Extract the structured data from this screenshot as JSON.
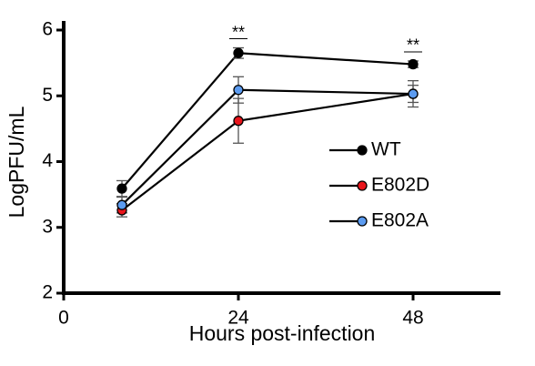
{
  "chart_data": {
    "type": "line",
    "x_label": "Hours post-infection",
    "y_label": "LogPFU/mL",
    "x": [
      8,
      24,
      48
    ],
    "series": [
      {
        "name": "WT",
        "color": "#000000",
        "values": [
          3.59,
          5.65,
          5.48
        ],
        "errors": [
          0.12,
          0.08,
          0.05
        ]
      },
      {
        "name": "E802D",
        "color": "#e8141b",
        "values": [
          3.26,
          4.62,
          5.03
        ],
        "errors": [
          0.1,
          0.34,
          0.2
        ]
      },
      {
        "name": "E802A",
        "color": "#5b9bf0",
        "values": [
          3.34,
          5.09,
          5.03
        ],
        "errors": [
          0.12,
          0.2,
          0.13
        ]
      }
    ],
    "annotations": [
      {
        "text": "**",
        "x": 24
      },
      {
        "text": "**",
        "x": 48
      }
    ],
    "xlim": [
      0,
      60
    ],
    "xticks": [
      0,
      24,
      48
    ],
    "ylim": [
      2,
      6
    ],
    "yticks": [
      2,
      3,
      4,
      5,
      6
    ],
    "legend": "right"
  }
}
